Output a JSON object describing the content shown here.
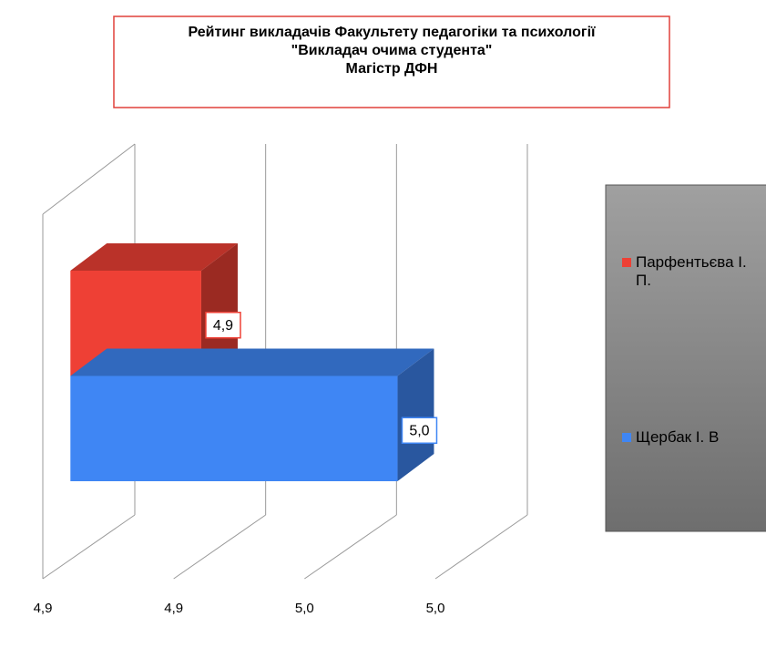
{
  "chart_data": {
    "type": "bar3d_horizontal",
    "title": "Рейтинг викладачів Факультету педагогіки та психології\n\"Викладач очима студента\"\nМагістр ДФН",
    "series": [
      {
        "name": "Парфентьєва І. П.",
        "color": "#ee4035",
        "values": [
          4.92
        ],
        "value_labels": [
          "4,9"
        ]
      },
      {
        "name": "Щербак І. В",
        "color": "#3f86f4",
        "values": [
          4.98
        ],
        "value_labels": [
          "5,0"
        ]
      }
    ],
    "xlim": [
      4.88,
      5.0
    ],
    "xticks": [
      {
        "value": 4.88,
        "label": "4,9"
      },
      {
        "value": 4.92,
        "label": "4,9"
      },
      {
        "value": 4.96,
        "label": "5,0"
      },
      {
        "value": 5.0,
        "label": "5,0"
      }
    ],
    "grid": true,
    "legend": "right"
  }
}
